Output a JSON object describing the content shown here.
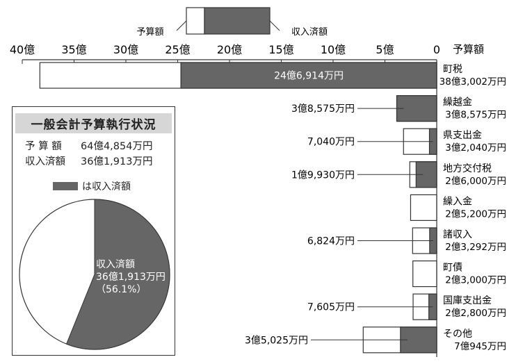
{
  "chart_data": {
    "type": "bar",
    "orientation": "horizontal",
    "unit": "億",
    "xlim": [
      0,
      40
    ],
    "x_ticks": [
      "40億",
      "35億",
      "30億",
      "25億",
      "20億",
      "15億",
      "10億",
      "5億",
      "0"
    ],
    "axis_header": "予算額",
    "legend": {
      "budget_label": "予算額",
      "revenue_label": "収入済額"
    },
    "categories": [
      "町税",
      "繰越金",
      "県支出金",
      "地方交付税",
      "繰入金",
      "諸収入",
      "町債",
      "国庫支出金",
      "その他"
    ],
    "budget_values": [
      38.3002,
      3.8575,
      3.204,
      2.6,
      2.52,
      2.3292,
      2.3,
      2.28,
      7.0945
    ],
    "revenue_values": [
      24.6914,
      3.8575,
      0.704,
      1.993,
      0,
      0.6824,
      0,
      0.7605,
      3.5025
    ],
    "budget_labels": [
      "38億3,002万円",
      "3億8,575万円",
      "3億2,040万円",
      "2億6,000万円",
      "2億5,200万円",
      "2億3,292万円",
      "2億3,000万円",
      "2億2,800万円",
      "7億945万円"
    ],
    "revenue_labels": [
      "24億6,914万円",
      "3億8,575万円",
      "7,040万円",
      "1億9,930万円",
      "",
      "6,824万円",
      "",
      "7,605万円",
      "3億5,025万円"
    ]
  },
  "panel": {
    "title": "一般会計予算執行状況",
    "budget_label": "予 算 額",
    "budget_value": "64億4,854万円",
    "revenue_label": "収入済額",
    "revenue_value": "36億1,913万円",
    "legend_text": "は収入済額",
    "pie": {
      "type": "pie",
      "revenue_fraction": 0.561,
      "label_line1": "収入済額",
      "label_line2": "36億1,913万円",
      "label_line3": "（56.1%）"
    }
  },
  "colors": {
    "revenue": "#666666",
    "budget": "#ffffff",
    "stroke": "#333333"
  }
}
